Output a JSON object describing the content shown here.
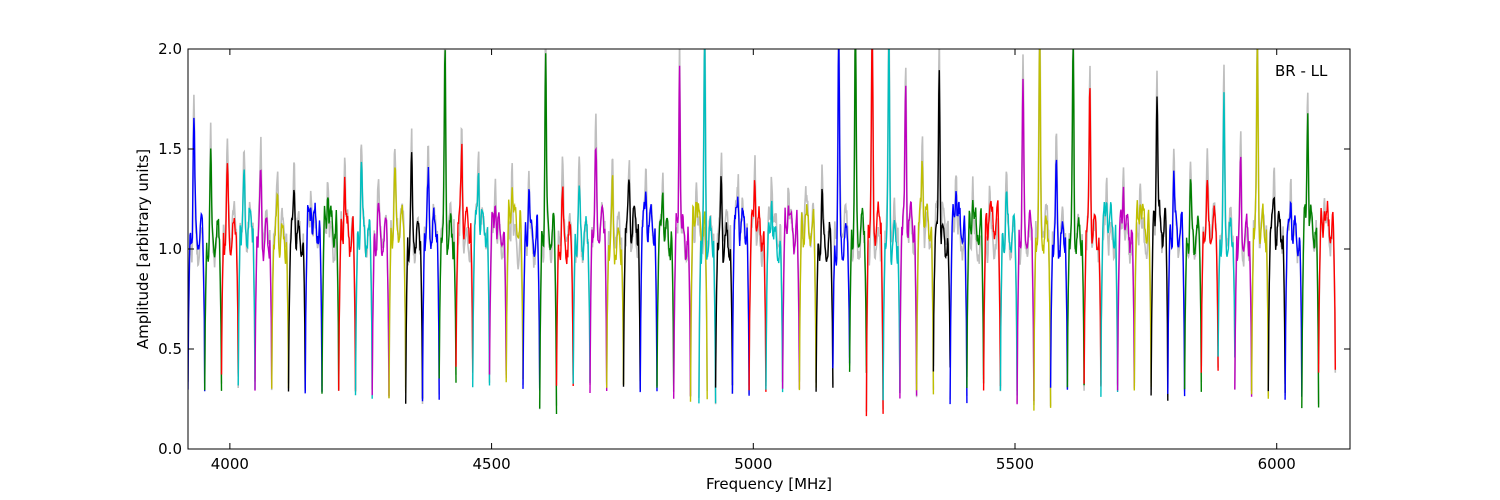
{
  "chart_data": {
    "type": "line",
    "title": "",
    "annotation": "BR - LL",
    "xlabel": "Frequency [MHz]",
    "ylabel": "Amplitude [arbitrary units]",
    "xlim": [
      3920,
      6140
    ],
    "ylim": [
      0.0,
      2.0
    ],
    "xticks": [
      4000,
      4500,
      5000,
      5500,
      6000
    ],
    "yticks": [
      0.0,
      0.5,
      1.0,
      1.5,
      2.0
    ],
    "xtick_labels": [
      "4000",
      "4500",
      "5000",
      "5500",
      "6000"
    ],
    "ytick_labels": [
      "0.0",
      "0.5",
      "1.0",
      "1.5",
      "2.0"
    ],
    "grid": false,
    "band_width_mhz": 32,
    "background_series_color": "#bfbfbf",
    "series_colors": [
      "#0000ff",
      "#008000",
      "#ff0000",
      "#00bfbf",
      "#bf00bf",
      "#bfbf00",
      "#000000"
    ],
    "bands": [
      {
        "f": 3936,
        "lo": 0.3,
        "hi": 1.66,
        "color": "#0000ff"
      },
      {
        "f": 3968,
        "lo": 0.29,
        "hi": 1.45,
        "color": "#008000"
      },
      {
        "f": 4000,
        "lo": 0.38,
        "hi": 1.33,
        "color": "#ff0000"
      },
      {
        "f": 4032,
        "lo": 0.3,
        "hi": 1.31,
        "color": "#00bfbf"
      },
      {
        "f": 4064,
        "lo": 0.31,
        "hi": 1.38,
        "color": "#bf00bf"
      },
      {
        "f": 4096,
        "lo": 0.3,
        "hi": 1.28,
        "color": "#bfbf00"
      },
      {
        "f": 4128,
        "lo": 0.29,
        "hi": 1.36,
        "color": "#000000"
      },
      {
        "f": 4160,
        "lo": 0.29,
        "hi": 1.27,
        "color": "#0000ff"
      },
      {
        "f": 4192,
        "lo": 0.28,
        "hi": 1.34,
        "color": "#008000"
      },
      {
        "f": 4224,
        "lo": 0.29,
        "hi": 1.41,
        "color": "#ff0000"
      },
      {
        "f": 4256,
        "lo": 0.25,
        "hi": 1.46,
        "color": "#00bfbf"
      },
      {
        "f": 4288,
        "lo": 0.25,
        "hi": 1.21,
        "color": "#bf00bf"
      },
      {
        "f": 4320,
        "lo": 0.26,
        "hi": 1.33,
        "color": "#bfbf00"
      },
      {
        "f": 4352,
        "lo": 0.24,
        "hi": 1.4,
        "color": "#000000"
      },
      {
        "f": 4384,
        "lo": 0.23,
        "hi": 1.3,
        "color": "#0000ff"
      },
      {
        "f": 4416,
        "lo": 0.35,
        "hi": 2.0,
        "color": "#008000"
      },
      {
        "f": 4448,
        "lo": 0.4,
        "hi": 1.52,
        "color": "#ff0000"
      },
      {
        "f": 4480,
        "lo": 0.3,
        "hi": 1.44,
        "color": "#00bfbf"
      },
      {
        "f": 4512,
        "lo": 0.36,
        "hi": 1.31,
        "color": "#bf00bf"
      },
      {
        "f": 4544,
        "lo": 0.33,
        "hi": 1.4,
        "color": "#bfbf00"
      },
      {
        "f": 4576,
        "lo": 0.3,
        "hi": 1.34,
        "color": "#0000ff"
      },
      {
        "f": 4608,
        "lo": 0.19,
        "hi": 2.0,
        "color": "#008000"
      },
      {
        "f": 4640,
        "lo": 0.32,
        "hi": 1.27,
        "color": "#ff0000"
      },
      {
        "f": 4672,
        "lo": 0.34,
        "hi": 1.26,
        "color": "#00bfbf"
      },
      {
        "f": 4704,
        "lo": 0.3,
        "hi": 1.44,
        "color": "#bf00bf"
      },
      {
        "f": 4736,
        "lo": 0.32,
        "hi": 1.27,
        "color": "#bfbf00"
      },
      {
        "f": 4768,
        "lo": 0.3,
        "hi": 1.3,
        "color": "#000000"
      },
      {
        "f": 4800,
        "lo": 0.28,
        "hi": 1.3,
        "color": "#0000ff"
      },
      {
        "f": 4832,
        "lo": 0.3,
        "hi": 1.33,
        "color": "#008000"
      },
      {
        "f": 4864,
        "lo": 0.26,
        "hi": 2.0,
        "color": "#bf00bf"
      },
      {
        "f": 4896,
        "lo": 0.25,
        "hi": 1.32,
        "color": "#bfbf00"
      },
      {
        "f": 4912,
        "lo": 0.22,
        "hi": 2.0,
        "color": "#00bfbf"
      },
      {
        "f": 4944,
        "lo": 0.3,
        "hi": 1.33,
        "color": "#000000"
      },
      {
        "f": 4976,
        "lo": 0.28,
        "hi": 1.27,
        "color": "#0000ff"
      },
      {
        "f": 5008,
        "lo": 0.29,
        "hi": 1.41,
        "color": "#ff0000"
      },
      {
        "f": 5040,
        "lo": 0.29,
        "hi": 1.33,
        "color": "#00bfbf"
      },
      {
        "f": 5072,
        "lo": 0.3,
        "hi": 1.28,
        "color": "#bf00bf"
      },
      {
        "f": 5104,
        "lo": 0.3,
        "hi": 1.2,
        "color": "#bfbf00"
      },
      {
        "f": 5136,
        "lo": 0.3,
        "hi": 1.28,
        "color": "#000000"
      },
      {
        "f": 5168,
        "lo": 0.42,
        "hi": 2.0,
        "color": "#0000ff"
      },
      {
        "f": 5200,
        "lo": 0.4,
        "hi": 2.0,
        "color": "#008000"
      },
      {
        "f": 5232,
        "lo": 0.18,
        "hi": 2.0,
        "color": "#ff0000"
      },
      {
        "f": 5264,
        "lo": 0.26,
        "hi": 2.0,
        "color": "#00bfbf"
      },
      {
        "f": 5296,
        "lo": 0.25,
        "hi": 1.8,
        "color": "#bf00bf"
      },
      {
        "f": 5328,
        "lo": 0.28,
        "hi": 1.48,
        "color": "#bfbf00"
      },
      {
        "f": 5360,
        "lo": 0.4,
        "hi": 2.0,
        "color": "#000000"
      },
      {
        "f": 5392,
        "lo": 0.24,
        "hi": 1.38,
        "color": "#0000ff"
      },
      {
        "f": 5424,
        "lo": 0.32,
        "hi": 1.29,
        "color": "#008000"
      },
      {
        "f": 5456,
        "lo": 0.3,
        "hi": 1.22,
        "color": "#ff0000"
      },
      {
        "f": 5488,
        "lo": 0.28,
        "hi": 1.25,
        "color": "#00bfbf"
      },
      {
        "f": 5520,
        "lo": 0.24,
        "hi": 1.8,
        "color": "#bf00bf"
      },
      {
        "f": 5552,
        "lo": 0.21,
        "hi": 2.0,
        "color": "#bfbf00"
      },
      {
        "f": 5584,
        "lo": 0.3,
        "hi": 1.38,
        "color": "#0000ff"
      },
      {
        "f": 5616,
        "lo": 0.3,
        "hi": 2.0,
        "color": "#008000"
      },
      {
        "f": 5648,
        "lo": 0.32,
        "hi": 1.82,
        "color": "#ff0000"
      },
      {
        "f": 5680,
        "lo": 0.28,
        "hi": 1.3,
        "color": "#00bfbf"
      },
      {
        "f": 5712,
        "lo": 0.3,
        "hi": 1.38,
        "color": "#bf00bf"
      },
      {
        "f": 5744,
        "lo": 0.3,
        "hi": 1.32,
        "color": "#bfbf00"
      },
      {
        "f": 5776,
        "lo": 0.25,
        "hi": 1.84,
        "color": "#000000"
      },
      {
        "f": 5808,
        "lo": 0.28,
        "hi": 1.4,
        "color": "#0000ff"
      },
      {
        "f": 5840,
        "lo": 0.3,
        "hi": 1.3,
        "color": "#008000"
      },
      {
        "f": 5872,
        "lo": 0.4,
        "hi": 1.28,
        "color": "#ff0000"
      },
      {
        "f": 5904,
        "lo": 0.47,
        "hi": 1.7,
        "color": "#00bfbf"
      },
      {
        "f": 5936,
        "lo": 0.28,
        "hi": 1.38,
        "color": "#bf00bf"
      },
      {
        "f": 5968,
        "lo": 0.26,
        "hi": 2.0,
        "color": "#bfbf00"
      },
      {
        "f": 6000,
        "lo": 0.3,
        "hi": 1.27,
        "color": "#000000"
      },
      {
        "f": 6032,
        "lo": 0.26,
        "hi": 1.29,
        "color": "#0000ff"
      },
      {
        "f": 6064,
        "lo": 0.22,
        "hi": 1.76,
        "color": "#008000"
      },
      {
        "f": 6096,
        "lo": 0.38,
        "hi": 1.24,
        "color": "#ff0000"
      }
    ]
  }
}
